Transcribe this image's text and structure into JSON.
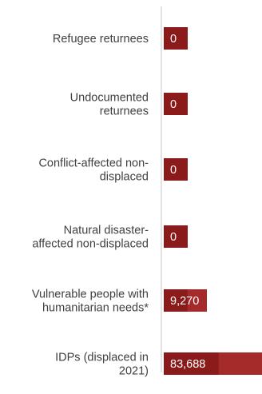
{
  "chart_data": {
    "type": "bar",
    "orientation": "horizontal",
    "categories": [
      "Refugee returnees",
      "Undocumented returnees",
      "Conflict-affected non-displaced",
      "Natural disaster-affected non-displaced",
      "Vulnerable people with humanitarian needs*",
      "IDPs (displaced in 2021)"
    ],
    "category_lines": [
      [
        "Refugee returnees"
      ],
      [
        "Undocumented",
        "returnees"
      ],
      [
        "Conflict-affected non-",
        "displaced"
      ],
      [
        "Natural disaster-",
        "affected non-displaced"
      ],
      [
        "Vulnerable people with",
        "humanitarian needs*"
      ],
      [
        "IDPs (displaced in",
        "2021)"
      ]
    ],
    "values": [
      0,
      0,
      0,
      0,
      9270,
      83688
    ],
    "value_labels": [
      "0",
      "0",
      "0",
      "0",
      "9,270",
      "83,688"
    ],
    "bar_color": "#8b1a1a",
    "bar_color_light": "#a52a2a",
    "axis_color": "#c8c8c8",
    "xlim": [
      0,
      83688
    ],
    "grid": false,
    "legend": "none"
  }
}
